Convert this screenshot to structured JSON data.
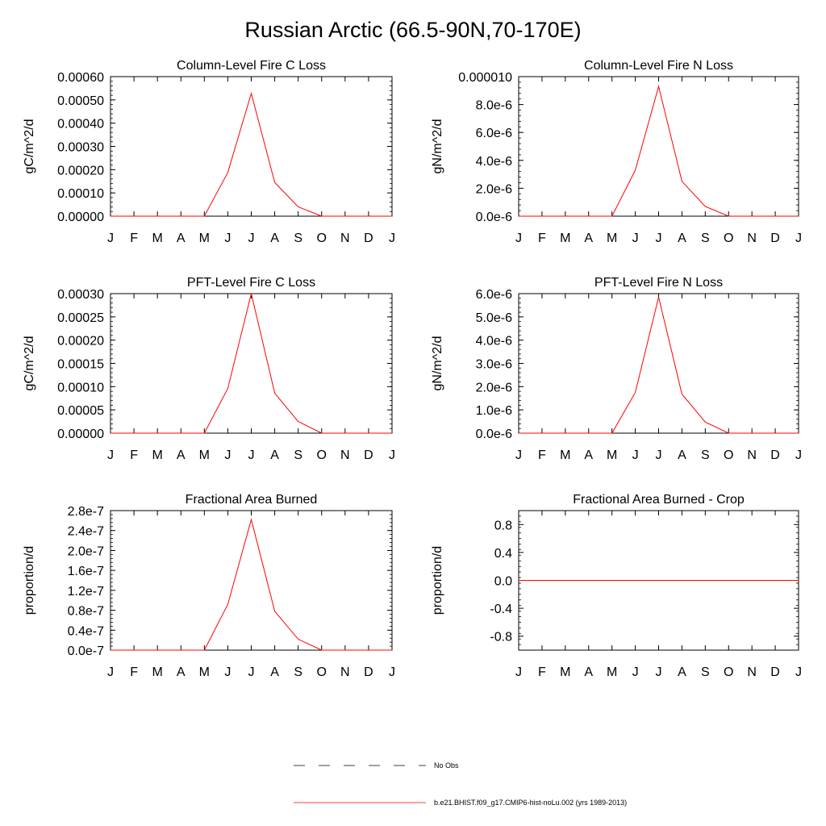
{
  "title": "Russian Arctic (66.5-90N,70-170E)",
  "legend": {
    "obs_label": "No Obs",
    "model_label": "b.e21.BHIST.f09_g17.CMIP6-hist-noLu.002 (yrs 1989-2013)",
    "obs_style": "dashed-black",
    "model_color": "#ff0000"
  },
  "chart_data": [
    {
      "type": "line",
      "title": "Column-Level Fire C Loss",
      "ylabel": "gC/m^2/d",
      "categories": [
        "J",
        "F",
        "M",
        "A",
        "M",
        "J",
        "J",
        "A",
        "S",
        "O",
        "N",
        "D",
        "J"
      ],
      "ylim": [
        0,
        0.0006
      ],
      "yticks": [
        {
          "value": 0,
          "label": "0.00000"
        },
        {
          "value": 0.0001,
          "label": "0.00010"
        },
        {
          "value": 0.0002,
          "label": "0.00020"
        },
        {
          "value": 0.0003,
          "label": "0.00030"
        },
        {
          "value": 0.0004,
          "label": "0.00040"
        },
        {
          "value": 0.0005,
          "label": "0.00050"
        },
        {
          "value": 0.0006,
          "label": "0.00060"
        }
      ],
      "series": [
        {
          "color": "#ff0000",
          "values": [
            0,
            0,
            0,
            0,
            0,
            0.000188,
            0.000528,
            0.000145,
            4e-05,
            0,
            0,
            0,
            0
          ]
        }
      ]
    },
    {
      "type": "line",
      "title": "Column-Level Fire N Loss",
      "ylabel": "gN/m^2/d",
      "categories": [
        "J",
        "F",
        "M",
        "A",
        "M",
        "J",
        "J",
        "A",
        "S",
        "O",
        "N",
        "D",
        "J"
      ],
      "ylim": [
        0,
        1e-05
      ],
      "yticks": [
        {
          "value": 0,
          "label": "0.0e-6"
        },
        {
          "value": 2e-06,
          "label": "2.0e-6"
        },
        {
          "value": 4e-06,
          "label": "4.0e-6"
        },
        {
          "value": 6e-06,
          "label": "6.0e-6"
        },
        {
          "value": 8e-06,
          "label": "8.0e-6"
        },
        {
          "value": 1e-05,
          "label": "0.000010"
        }
      ],
      "series": [
        {
          "color": "#ff0000",
          "values": [
            0,
            0,
            0,
            0,
            0,
            3.3e-06,
            9.3e-06,
            2.5e-06,
            7e-07,
            0,
            0,
            0,
            0
          ]
        }
      ]
    },
    {
      "type": "line",
      "title": "PFT-Level Fire C Loss",
      "ylabel": "gC/m^2/d",
      "categories": [
        "J",
        "F",
        "M",
        "A",
        "M",
        "J",
        "J",
        "A",
        "S",
        "O",
        "N",
        "D",
        "J"
      ],
      "ylim": [
        0,
        0.0003
      ],
      "yticks": [
        {
          "value": 0,
          "label": "0.00000"
        },
        {
          "value": 5e-05,
          "label": "0.00005"
        },
        {
          "value": 0.0001,
          "label": "0.00010"
        },
        {
          "value": 0.00015,
          "label": "0.00015"
        },
        {
          "value": 0.0002,
          "label": "0.00020"
        },
        {
          "value": 0.00025,
          "label": "0.00025"
        },
        {
          "value": 0.0003,
          "label": "0.00030"
        }
      ],
      "series": [
        {
          "color": "#ff0000",
          "values": [
            0,
            0,
            0,
            0,
            0,
            9.6e-05,
            0.0003,
            8.6e-05,
            2.5e-05,
            0,
            0,
            0,
            0
          ]
        }
      ]
    },
    {
      "type": "line",
      "title": "PFT-Level Fire N Loss",
      "ylabel": "gN/m^2/d",
      "categories": [
        "J",
        "F",
        "M",
        "A",
        "M",
        "J",
        "J",
        "A",
        "S",
        "O",
        "N",
        "D",
        "J"
      ],
      "ylim": [
        0,
        6e-06
      ],
      "yticks": [
        {
          "value": 0,
          "label": "0.0e-6"
        },
        {
          "value": 1e-06,
          "label": "1.0e-6"
        },
        {
          "value": 2e-06,
          "label": "2.0e-6"
        },
        {
          "value": 3e-06,
          "label": "3.0e-6"
        },
        {
          "value": 4e-06,
          "label": "4.0e-6"
        },
        {
          "value": 5e-06,
          "label": "5.0e-6"
        },
        {
          "value": 6e-06,
          "label": "6.0e-6"
        }
      ],
      "series": [
        {
          "color": "#ff0000",
          "values": [
            0,
            0,
            0,
            0,
            0,
            1.75e-06,
            5.85e-06,
            1.68e-06,
            4.8e-07,
            0,
            0,
            0,
            0
          ]
        }
      ]
    },
    {
      "type": "line",
      "title": "Fractional Area Burned",
      "ylabel": "proportion/d",
      "categories": [
        "J",
        "F",
        "M",
        "A",
        "M",
        "J",
        "J",
        "A",
        "S",
        "O",
        "N",
        "D",
        "J"
      ],
      "ylim": [
        0,
        2.8e-07
      ],
      "yticks": [
        {
          "value": 0,
          "label": "0.0e-7"
        },
        {
          "value": 4e-08,
          "label": "0.4e-7"
        },
        {
          "value": 8e-08,
          "label": "0.8e-7"
        },
        {
          "value": 1.2e-07,
          "label": "1.2e-7"
        },
        {
          "value": 1.6e-07,
          "label": "1.6e-7"
        },
        {
          "value": 2e-07,
          "label": "2.0e-7"
        },
        {
          "value": 2.4e-07,
          "label": "2.4e-7"
        },
        {
          "value": 2.8e-07,
          "label": "2.8e-7"
        }
      ],
      "series": [
        {
          "color": "#ff0000",
          "values": [
            0,
            0,
            0,
            0,
            0,
            9.2e-08,
            2.62e-07,
            7.8e-08,
            2.2e-08,
            0,
            0,
            0,
            0
          ]
        }
      ]
    },
    {
      "type": "line",
      "title": "Fractional Area Burned - Crop",
      "ylabel": "proportion/d",
      "categories": [
        "J",
        "F",
        "M",
        "A",
        "M",
        "J",
        "J",
        "A",
        "S",
        "O",
        "N",
        "D",
        "J"
      ],
      "ylim": [
        -1,
        1
      ],
      "yticks": [
        {
          "value": -0.8,
          "label": "-0.8"
        },
        {
          "value": -0.4,
          "label": "-0.4"
        },
        {
          "value": 0,
          "label": "0.0"
        },
        {
          "value": 0.4,
          "label": "0.4"
        },
        {
          "value": 0.8,
          "label": "0.8"
        }
      ],
      "series": [
        {
          "color": "#ff0000",
          "values": [
            0,
            0,
            0,
            0,
            0,
            0,
            0,
            0,
            0,
            0,
            0,
            0,
            0
          ]
        }
      ]
    }
  ]
}
